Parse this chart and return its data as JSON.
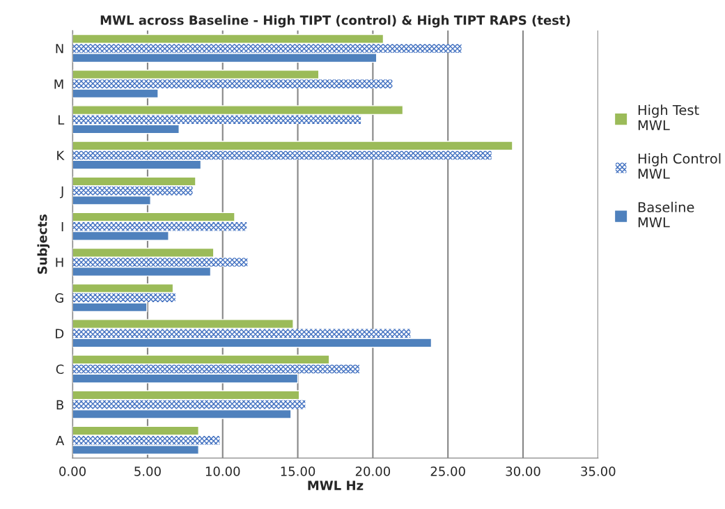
{
  "chart_data": {
    "type": "bar",
    "orientation": "horizontal",
    "title": "MWL across Baseline - High TIPT (control) & High TIPT RAPS (test)",
    "xlabel": "MWL Hz",
    "ylabel": "Subjects",
    "categories": [
      "N",
      "M",
      "L",
      "K",
      "J",
      "I",
      "H",
      "G",
      "D",
      "C",
      "B",
      "A"
    ],
    "series": [
      {
        "name": "High Test MWL",
        "color": "#9bbb59",
        "values": [
          20.7,
          16.4,
          22.0,
          29.3,
          8.2,
          10.8,
          9.4,
          6.7,
          14.7,
          17.1,
          15.1,
          8.4
        ]
      },
      {
        "name": "High Control MWL",
        "color": "#3f6fc0",
        "values": [
          25.9,
          21.3,
          19.2,
          27.9,
          8.0,
          11.6,
          11.65,
          6.85,
          22.5,
          19.1,
          15.5,
          9.8
        ]
      },
      {
        "name": "Baseline MWL",
        "color": "#4f81bd",
        "values": [
          20.25,
          5.7,
          7.1,
          8.55,
          5.2,
          6.4,
          9.2,
          4.95,
          23.9,
          15.0,
          14.55,
          8.4
        ]
      }
    ],
    "xlim": [
      0,
      35
    ],
    "xticks": [
      {
        "value": 0,
        "label": "0.00"
      },
      {
        "value": 5,
        "label": "5.00"
      },
      {
        "value": 10,
        "label": "10.00"
      },
      {
        "value": 15,
        "label": "15.00"
      },
      {
        "value": 20,
        "label": "20.00"
      },
      {
        "value": 25,
        "label": "25.00"
      },
      {
        "value": 30,
        "label": "30.00"
      },
      {
        "value": 35,
        "label": "35.00"
      }
    ],
    "grid": "x",
    "legend": "right"
  }
}
